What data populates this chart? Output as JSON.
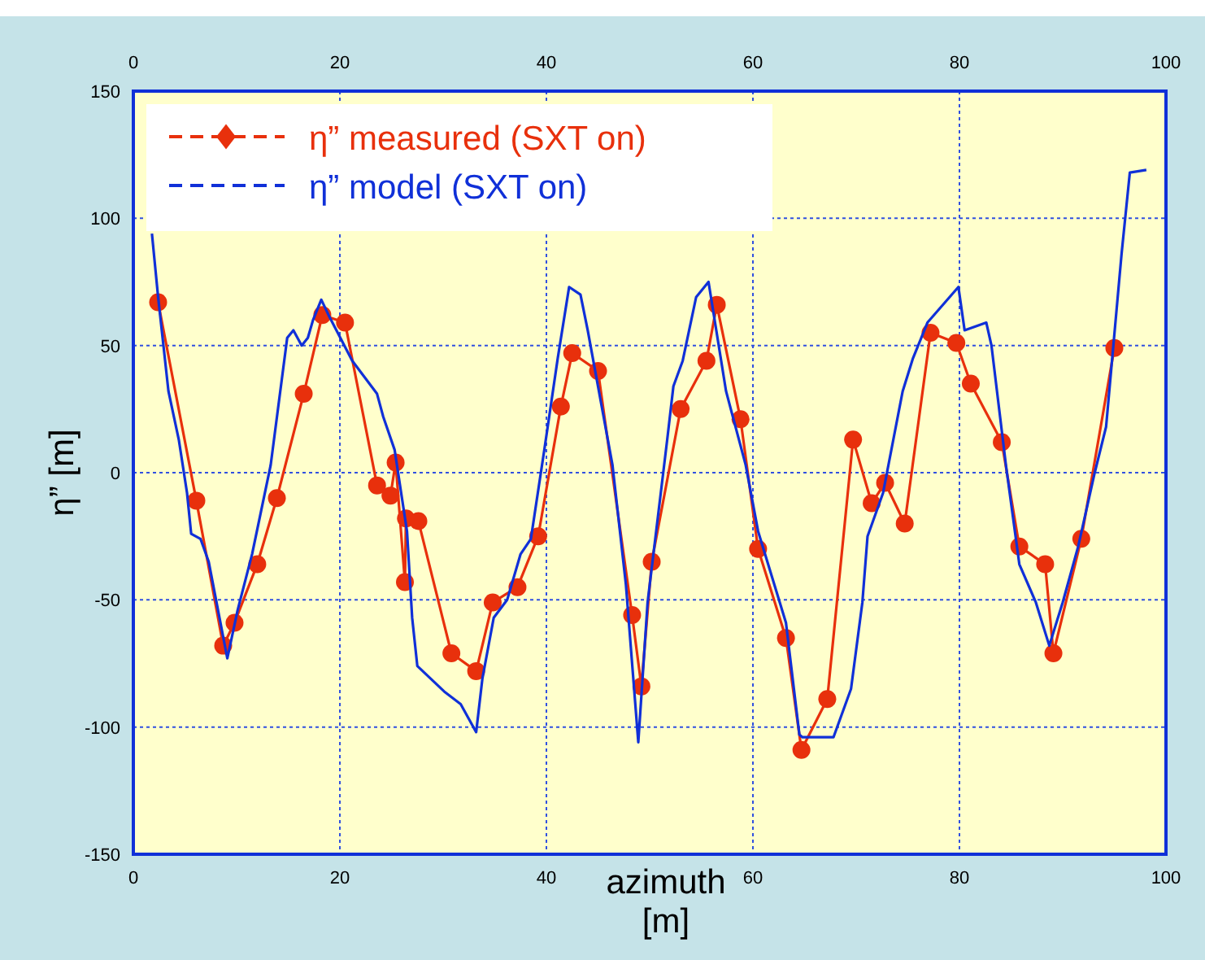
{
  "chart_data": {
    "type": "line",
    "xlabel": "azimuth\n[m]",
    "ylabel": "η” [m]",
    "xlim": [
      0,
      100
    ],
    "xticks": [
      0,
      20,
      40,
      60,
      80,
      100
    ],
    "x2lim": [
      0,
      100
    ],
    "x2ticks": [
      0,
      20,
      40,
      60,
      80,
      100
    ],
    "ylim": [
      -150,
      150
    ],
    "yticks": [
      -150,
      -100,
      -50,
      0,
      50,
      100,
      150
    ],
    "grid": true,
    "legend": "top left",
    "series": [
      {
        "name": "η” measured (SXT on)",
        "color": "#e8300c",
        "marker": "circle",
        "line_style": "solid",
        "x": [
          2.4,
          6.1,
          8.7,
          9.8,
          12.0,
          13.9,
          16.5,
          18.3,
          20.5,
          23.6,
          24.9,
          25.4,
          26.3,
          26.4,
          27.6,
          30.8,
          33.2,
          34.8,
          37.2,
          39.2,
          41.4,
          42.5,
          45.0,
          48.3,
          49.2,
          50.2,
          53.0,
          55.5,
          56.5,
          58.8,
          60.5,
          63.2,
          64.7,
          67.2,
          69.7,
          71.5,
          72.8,
          74.7,
          77.2,
          79.7,
          81.1,
          84.1,
          85.8,
          88.3,
          89.1,
          91.8,
          95.0
        ],
        "values": [
          67,
          -11,
          -68,
          -59,
          -36,
          -10,
          31,
          62,
          59,
          -5,
          -9,
          4,
          -43,
          -18,
          -19,
          -71,
          -78,
          -51,
          -45,
          -25,
          26,
          47,
          40,
          -56,
          -84,
          -35,
          25,
          44,
          66,
          21,
          -30,
          -65,
          -109,
          -89,
          13,
          -12,
          -4,
          -20,
          55,
          51,
          35,
          12,
          -29,
          -36,
          -71,
          -26,
          49
        ]
      },
      {
        "name": "η” model (SXT on)",
        "color": "#1030d8",
        "marker": "none",
        "line_style": "solid",
        "x": [
          1.8,
          2.4,
          3.4,
          4.4,
          5.2,
          5.6,
          6.5,
          7.3,
          9.1,
          10.1,
          11.5,
          13.3,
          14.9,
          15.5,
          16.3,
          16.9,
          17.4,
          18.2,
          18.9,
          21.2,
          23.6,
          24.2,
          25.3,
          26.5,
          27.0,
          27.5,
          30.1,
          31.7,
          33.2,
          33.8,
          34.9,
          36.2,
          37.5,
          38.5,
          39.8,
          41.1,
          42.2,
          43.3,
          44.0,
          46.4,
          47.7,
          48.9,
          49.8,
          51.7,
          52.3,
          53.2,
          54.5,
          55.7,
          57.4,
          59.3,
          60.5,
          63.2,
          64.5,
          64.8,
          67.8,
          69.5,
          70.6,
          71.1,
          72.6,
          74.5,
          75.5,
          76.9,
          79.9,
          80.5,
          82.6,
          83.1,
          84.5,
          85.8,
          87.4,
          88.7,
          90.0,
          91.5,
          93.1,
          94.2,
          95.7,
          96.5,
          98.1
        ],
        "values": [
          94,
          69,
          32,
          13,
          -8,
          -24,
          -26,
          -35,
          -73,
          -54,
          -32,
          3,
          53,
          56,
          50,
          53,
          60,
          68,
          62,
          44,
          31,
          22,
          9,
          -23,
          -57,
          -76,
          -86,
          -91,
          -102,
          -81,
          -57,
          -50,
          -32,
          -26,
          9,
          45,
          73,
          70,
          56,
          3,
          -44,
          -106,
          -51,
          13,
          34,
          44,
          69,
          75,
          32,
          3,
          -23,
          -59,
          -103,
          -104,
          -104,
          -85,
          -51,
          -25,
          -8,
          32,
          45,
          59,
          73,
          56,
          59,
          50,
          3,
          -36,
          -51,
          -68,
          -51,
          -29,
          0,
          18,
          86,
          118,
          119
        ]
      }
    ]
  }
}
